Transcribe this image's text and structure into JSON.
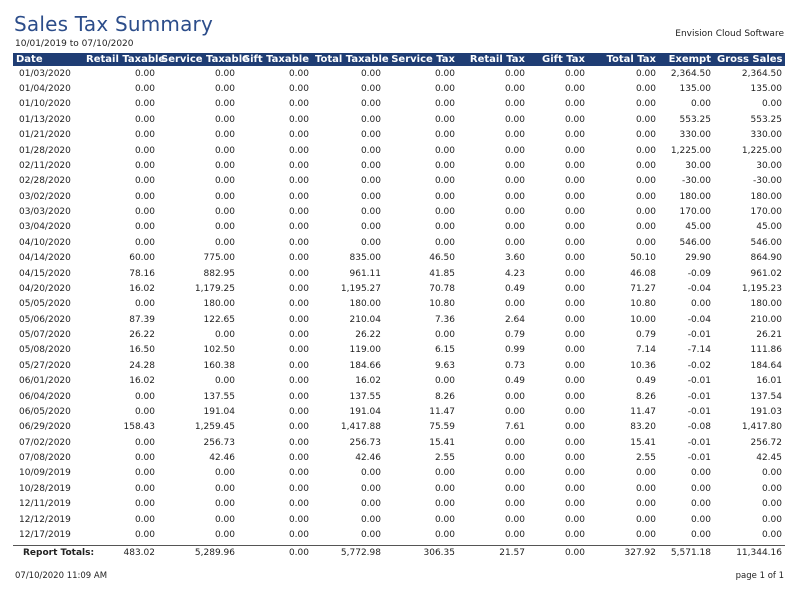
{
  "header": {
    "title": "Sales Tax Summary",
    "date_range": "10/01/2019 to 07/10/2020",
    "company": "Envision Cloud Software"
  },
  "table": {
    "columns": [
      "Date",
      "Retail Taxable",
      "Service Taxable",
      "Gift Taxable",
      "Total Taxable",
      "Service Tax",
      "Retail Tax",
      "Gift Tax",
      "Total Tax",
      "Exempt",
      "Gross Sales"
    ],
    "rows": [
      [
        "01/03/2020",
        "0.00",
        "0.00",
        "0.00",
        "0.00",
        "0.00",
        "0.00",
        "0.00",
        "0.00",
        "2,364.50",
        "2,364.50"
      ],
      [
        "01/04/2020",
        "0.00",
        "0.00",
        "0.00",
        "0.00",
        "0.00",
        "0.00",
        "0.00",
        "0.00",
        "135.00",
        "135.00"
      ],
      [
        "01/10/2020",
        "0.00",
        "0.00",
        "0.00",
        "0.00",
        "0.00",
        "0.00",
        "0.00",
        "0.00",
        "0.00",
        "0.00"
      ],
      [
        "01/13/2020",
        "0.00",
        "0.00",
        "0.00",
        "0.00",
        "0.00",
        "0.00",
        "0.00",
        "0.00",
        "553.25",
        "553.25"
      ],
      [
        "01/21/2020",
        "0.00",
        "0.00",
        "0.00",
        "0.00",
        "0.00",
        "0.00",
        "0.00",
        "0.00",
        "330.00",
        "330.00"
      ],
      [
        "01/28/2020",
        "0.00",
        "0.00",
        "0.00",
        "0.00",
        "0.00",
        "0.00",
        "0.00",
        "0.00",
        "1,225.00",
        "1,225.00"
      ],
      [
        "02/11/2020",
        "0.00",
        "0.00",
        "0.00",
        "0.00",
        "0.00",
        "0.00",
        "0.00",
        "0.00",
        "30.00",
        "30.00"
      ],
      [
        "02/28/2020",
        "0.00",
        "0.00",
        "0.00",
        "0.00",
        "0.00",
        "0.00",
        "0.00",
        "0.00",
        "-30.00",
        "-30.00"
      ],
      [
        "03/02/2020",
        "0.00",
        "0.00",
        "0.00",
        "0.00",
        "0.00",
        "0.00",
        "0.00",
        "0.00",
        "180.00",
        "180.00"
      ],
      [
        "03/03/2020",
        "0.00",
        "0.00",
        "0.00",
        "0.00",
        "0.00",
        "0.00",
        "0.00",
        "0.00",
        "170.00",
        "170.00"
      ],
      [
        "03/04/2020",
        "0.00",
        "0.00",
        "0.00",
        "0.00",
        "0.00",
        "0.00",
        "0.00",
        "0.00",
        "45.00",
        "45.00"
      ],
      [
        "04/10/2020",
        "0.00",
        "0.00",
        "0.00",
        "0.00",
        "0.00",
        "0.00",
        "0.00",
        "0.00",
        "546.00",
        "546.00"
      ],
      [
        "04/14/2020",
        "60.00",
        "775.00",
        "0.00",
        "835.00",
        "46.50",
        "3.60",
        "0.00",
        "50.10",
        "29.90",
        "864.90"
      ],
      [
        "04/15/2020",
        "78.16",
        "882.95",
        "0.00",
        "961.11",
        "41.85",
        "4.23",
        "0.00",
        "46.08",
        "-0.09",
        "961.02"
      ],
      [
        "04/20/2020",
        "16.02",
        "1,179.25",
        "0.00",
        "1,195.27",
        "70.78",
        "0.49",
        "0.00",
        "71.27",
        "-0.04",
        "1,195.23"
      ],
      [
        "05/05/2020",
        "0.00",
        "180.00",
        "0.00",
        "180.00",
        "10.80",
        "0.00",
        "0.00",
        "10.80",
        "0.00",
        "180.00"
      ],
      [
        "05/06/2020",
        "87.39",
        "122.65",
        "0.00",
        "210.04",
        "7.36",
        "2.64",
        "0.00",
        "10.00",
        "-0.04",
        "210.00"
      ],
      [
        "05/07/2020",
        "26.22",
        "0.00",
        "0.00",
        "26.22",
        "0.00",
        "0.79",
        "0.00",
        "0.79",
        "-0.01",
        "26.21"
      ],
      [
        "05/08/2020",
        "16.50",
        "102.50",
        "0.00",
        "119.00",
        "6.15",
        "0.99",
        "0.00",
        "7.14",
        "-7.14",
        "111.86"
      ],
      [
        "05/27/2020",
        "24.28",
        "160.38",
        "0.00",
        "184.66",
        "9.63",
        "0.73",
        "0.00",
        "10.36",
        "-0.02",
        "184.64"
      ],
      [
        "06/01/2020",
        "16.02",
        "0.00",
        "0.00",
        "16.02",
        "0.00",
        "0.49",
        "0.00",
        "0.49",
        "-0.01",
        "16.01"
      ],
      [
        "06/04/2020",
        "0.00",
        "137.55",
        "0.00",
        "137.55",
        "8.26",
        "0.00",
        "0.00",
        "8.26",
        "-0.01",
        "137.54"
      ],
      [
        "06/05/2020",
        "0.00",
        "191.04",
        "0.00",
        "191.04",
        "11.47",
        "0.00",
        "0.00",
        "11.47",
        "-0.01",
        "191.03"
      ],
      [
        "06/29/2020",
        "158.43",
        "1,259.45",
        "0.00",
        "1,417.88",
        "75.59",
        "7.61",
        "0.00",
        "83.20",
        "-0.08",
        "1,417.80"
      ],
      [
        "07/02/2020",
        "0.00",
        "256.73",
        "0.00",
        "256.73",
        "15.41",
        "0.00",
        "0.00",
        "15.41",
        "-0.01",
        "256.72"
      ],
      [
        "07/08/2020",
        "0.00",
        "42.46",
        "0.00",
        "42.46",
        "2.55",
        "0.00",
        "0.00",
        "2.55",
        "-0.01",
        "42.45"
      ],
      [
        "10/09/2019",
        "0.00",
        "0.00",
        "0.00",
        "0.00",
        "0.00",
        "0.00",
        "0.00",
        "0.00",
        "0.00",
        "0.00"
      ],
      [
        "10/28/2019",
        "0.00",
        "0.00",
        "0.00",
        "0.00",
        "0.00",
        "0.00",
        "0.00",
        "0.00",
        "0.00",
        "0.00"
      ],
      [
        "12/11/2019",
        "0.00",
        "0.00",
        "0.00",
        "0.00",
        "0.00",
        "0.00",
        "0.00",
        "0.00",
        "0.00",
        "0.00"
      ],
      [
        "12/12/2019",
        "0.00",
        "0.00",
        "0.00",
        "0.00",
        "0.00",
        "0.00",
        "0.00",
        "0.00",
        "0.00",
        "0.00"
      ],
      [
        "12/17/2019",
        "0.00",
        "0.00",
        "0.00",
        "0.00",
        "0.00",
        "0.00",
        "0.00",
        "0.00",
        "0.00",
        "0.00"
      ]
    ]
  },
  "totals": {
    "label": "Report Totals:",
    "values": [
      "483.02",
      "5,289.96",
      "0.00",
      "5,772.98",
      "306.35",
      "21.57",
      "0.00",
      "327.92",
      "5,571.18",
      "11,344.16"
    ]
  },
  "footer": {
    "timestamp": "07/10/2020 11:09 AM",
    "page": "page 1 of 1"
  },
  "colors": {
    "header_bg": "#1f3d74",
    "title_color": "#2c4d8a"
  }
}
